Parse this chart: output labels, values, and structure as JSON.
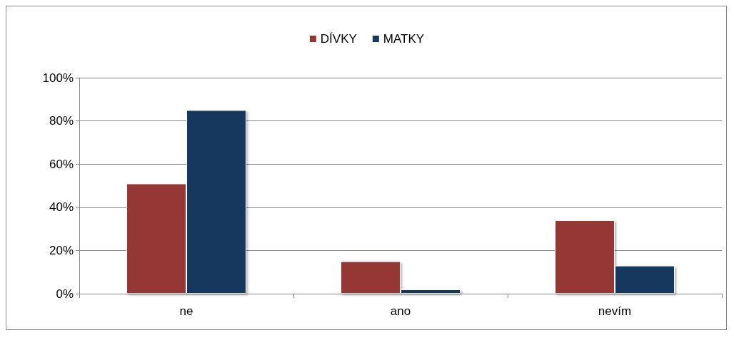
{
  "chart_data": {
    "type": "bar",
    "categories": [
      "ne",
      "ano",
      "nevím"
    ],
    "series": [
      {
        "name": "DÍVKY",
        "color": "#953735",
        "values": [
          51,
          15,
          34
        ]
      },
      {
        "name": "MATKY",
        "color": "#17375e",
        "values": [
          85,
          2,
          13
        ]
      }
    ],
    "ylim": [
      0,
      100
    ],
    "yticks": [
      {
        "value": 0,
        "label": "0%"
      },
      {
        "value": 20,
        "label": "20%"
      },
      {
        "value": 40,
        "label": "40%"
      },
      {
        "value": 60,
        "label": "60%"
      },
      {
        "value": 80,
        "label": "80%"
      },
      {
        "value": 100,
        "label": "100%"
      }
    ],
    "grid": "y",
    "legend": "top"
  }
}
